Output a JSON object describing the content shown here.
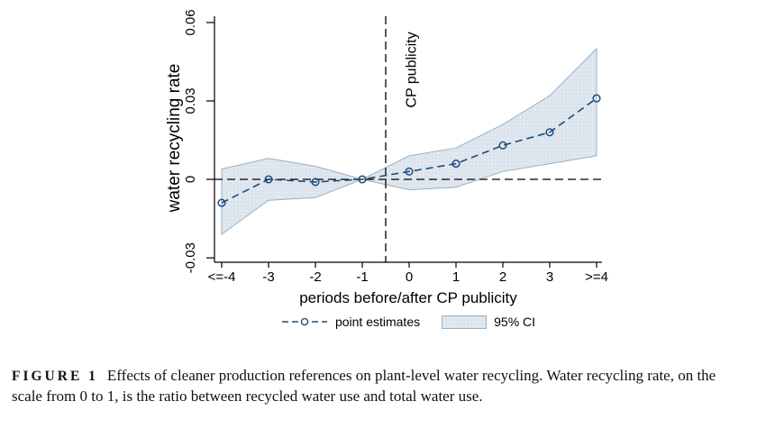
{
  "chart_data": {
    "type": "line",
    "title": "",
    "xlabel": "periods before/after CP publicity",
    "ylabel": "water recycling rate",
    "categories": [
      "<=-4",
      "-3",
      "-2",
      "-1",
      "0",
      "1",
      "2",
      "3",
      ">=4"
    ],
    "series": [
      {
        "name": "point estimates",
        "values": [
          -0.009,
          0.0,
          -0.001,
          0.0,
          0.003,
          0.006,
          0.013,
          0.018,
          0.031
        ]
      }
    ],
    "ci_band": {
      "name": "95% CI",
      "lower": [
        -0.021,
        -0.008,
        -0.007,
        0.0,
        -0.004,
        -0.003,
        0.003,
        0.006,
        0.009
      ],
      "upper": [
        0.004,
        0.008,
        0.005,
        0.0,
        0.009,
        0.012,
        0.021,
        0.032,
        0.05
      ]
    },
    "yticks": [
      -0.03,
      0,
      0.03,
      0.06
    ],
    "ytick_labels": [
      "-0.03",
      "0",
      "0.03",
      "0.06"
    ],
    "ylim": [
      -0.0317,
      0.0624
    ],
    "zero_line": true,
    "grid": false,
    "reference_line": {
      "label": "CP publicity",
      "x_period": -0.5
    },
    "legend_position": "bottom",
    "legend": [
      "point estimates",
      "95% CI"
    ],
    "colors": {
      "line": "#1f4e79",
      "band_fill": "#dbe4ec",
      "band_dot": "#eef2f7",
      "band_edge": "#9cafc0",
      "axis": "#000000",
      "dashed_lines": "#000000"
    }
  },
  "legend": {
    "point_estimates_label": "point estimates",
    "ci_label": "95% CI"
  },
  "caption": {
    "label": "FIGURE 1",
    "text": "Effects of cleaner production references on plant-level water recycling. Water recycling rate, on the scale from 0 to 1, is the ratio between recycled water use and total water use."
  }
}
